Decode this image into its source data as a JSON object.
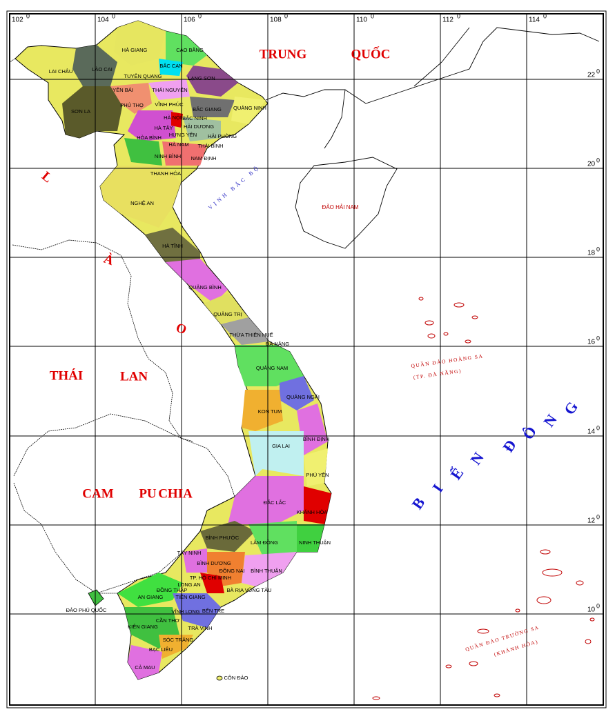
{
  "grid": {
    "longitudes": [
      "102",
      "104",
      "106",
      "108",
      "110",
      "112",
      "114"
    ],
    "latitudes": [
      "22",
      "20",
      "18",
      "16",
      "14",
      "12",
      "10"
    ],
    "degree_mark": "0"
  },
  "countries": [
    {
      "words": [
        "TRUNG",
        "QUỐC"
      ]
    },
    {
      "words": [
        "THÁI",
        "LAN"
      ]
    },
    {
      "words": [
        "CAM",
        "PU",
        "CHIA"
      ]
    },
    {
      "letters": [
        "L",
        "À",
        "O"
      ]
    }
  ],
  "sea": {
    "letters": [
      "B",
      "I",
      "Ể",
      "N",
      "Đ",
      "Ô",
      "N",
      "G"
    ]
  },
  "gulf": "VỊNH BẮC BỘ",
  "islands": {
    "hai_nam": "ĐẢO HẢI NAM",
    "hoang_sa": {
      "name": "QUẦN ĐẢO HOÀNG SA",
      "admin": "(TP. ĐÀ NẴNG)"
    },
    "truong_sa": {
      "name": "QUẦN ĐẢO TRƯỜNG SA",
      "admin": "(KHÁNH HÒA)"
    },
    "phu_quoc": "ĐẢO PHÚ QUỐC",
    "con_dao": "CÔN ĐẢO"
  },
  "provinces": [
    "HÀ GIANG",
    "CAO BẰNG",
    "LAI CHÂU",
    "LÀO CAI",
    "BẮC CẠN",
    "TUYÊN QUANG",
    "LẠNG SƠN",
    "YÊN BÁI",
    "THÁI NGUYÊN",
    "PHÚ THỌ",
    "VĨNH PHÚC",
    "BẮC GIANG",
    "QUẢNG NINH",
    "SƠN LA",
    "HÀ NỘI",
    "BẮC NINH",
    "HÀ TÂY",
    "HẢI DƯƠNG",
    "HƯNG YÊN",
    "HẢI PHÒNG",
    "HÒA BÌNH",
    "HÀ NAM",
    "THÁI BÌNH",
    "NINH BÌNH",
    "NAM ĐỊNH",
    "THANH HÓA",
    "NGHỆ AN",
    "HÀ TĨNH",
    "QUẢNG BÌNH",
    "QUẢNG TRỊ",
    "THỪA THIÊN HUẾ",
    "ĐÀ NẴNG",
    "QUẢNG NAM",
    "QUẢNG NGÃI",
    "KON TUM",
    "BÌNH ĐỊNH",
    "GIA LAI",
    "PHÚ YÊN",
    "ĐẮC LẮC",
    "KHÁNH HÒA",
    "BÌNH PHƯỚC",
    "LÂM ĐỒNG",
    "NINH THUẬN",
    "TÂY NINH",
    "BÌNH DƯƠNG",
    "ĐỒNG NAI",
    "BÌNH THUẬN",
    "TP. HỒ CHÍ MINH",
    "LONG AN",
    "ĐỒNG THÁP",
    "BÀ RỊA VŨNG TÀU",
    "AN GIANG",
    "TIỀN GIANG",
    "BẾN TRE",
    "VĨNH LONG",
    "CẦN THƠ",
    "KIÊN GIANG",
    "TRÀ VINH",
    "SÓC TRĂNG",
    "BẠC LIÊU",
    "CÀ MAU"
  ]
}
